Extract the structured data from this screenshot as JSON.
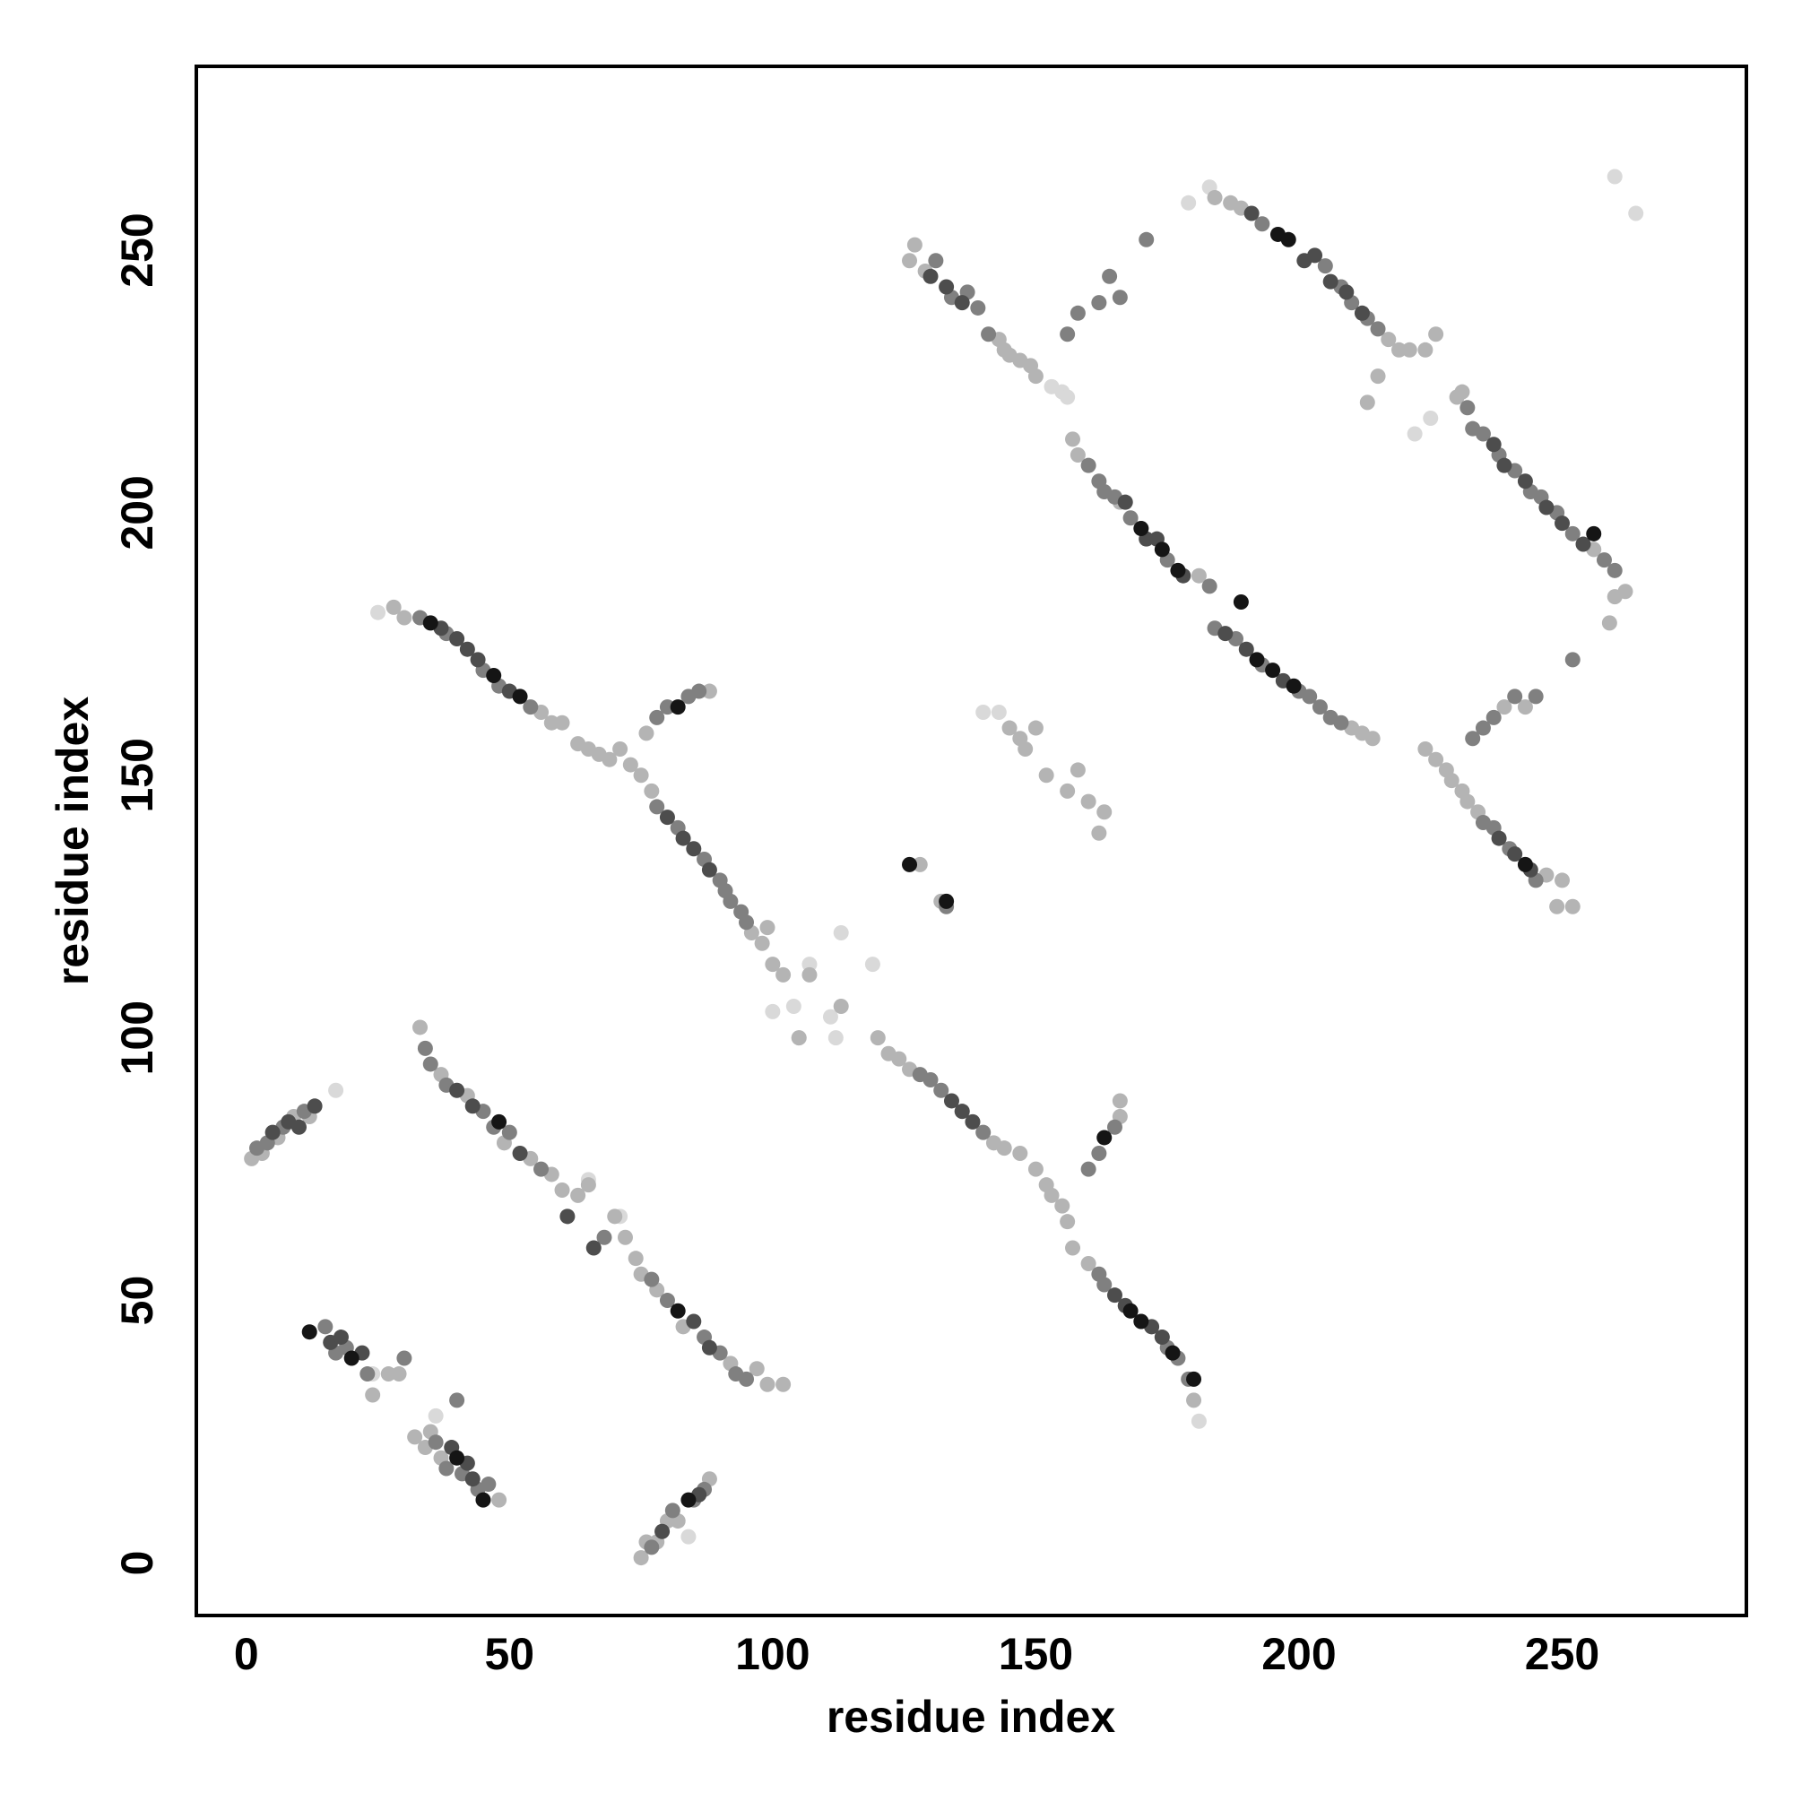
{
  "chart_data": {
    "type": "scatter",
    "x_label": "residue index",
    "y_label": "residue index",
    "xlim": [
      -9.5,
      285
    ],
    "ylim": [
      -10,
      285
    ],
    "xticks": [
      0,
      50,
      100,
      150,
      200,
      250
    ],
    "yticks": [
      0,
      50,
      100,
      150,
      200,
      250
    ],
    "grid": false,
    "series": [
      {
        "color": "#d9d9d9",
        "x": [
          25,
          17,
          24,
          36,
          84,
          65,
          100,
          104,
          105,
          107,
          111,
          112,
          113,
          119,
          140,
          143,
          153,
          155,
          156,
          179,
          183,
          222,
          225,
          260,
          264,
          181,
          71,
          61
        ],
        "values": [
          181,
          90,
          36,
          28,
          5,
          73,
          105,
          106,
          100,
          114,
          104,
          100,
          120,
          114,
          162,
          162,
          224,
          223,
          222,
          259,
          262,
          215,
          218,
          264,
          257,
          27,
          66,
          66
        ]
      },
      {
        "color": "#b4b4b4",
        "x": [
          1,
          3,
          6,
          9,
          12,
          24,
          27,
          29,
          32,
          34,
          35,
          37,
          48,
          75,
          76,
          78,
          80,
          82,
          88
        ],
        "values": [
          77,
          78,
          81,
          85,
          85,
          32,
          36,
          36,
          24,
          22,
          25,
          20,
          12,
          1,
          4,
          4,
          8,
          8,
          16
        ]
      },
      {
        "color": "#b4b4b4",
        "x": [
          33,
          37,
          42,
          49,
          54,
          58,
          60,
          63,
          65,
          70,
          72,
          74,
          75,
          78,
          83,
          92,
          97,
          99,
          102
        ],
        "values": [
          102,
          93,
          89,
          80,
          77,
          74,
          71,
          70,
          72,
          66,
          62,
          58,
          55,
          52,
          45,
          38,
          37,
          34,
          34
        ]
      },
      {
        "color": "#b4b4b4",
        "x": [
          28,
          30,
          56,
          58,
          60,
          63,
          65,
          67,
          69,
          71,
          73,
          75,
          76,
          77,
          88,
          96,
          98,
          99,
          100,
          102,
          105,
          107,
          113,
          120,
          122,
          124,
          126
        ],
        "values": [
          182,
          180,
          162,
          160,
          160,
          156,
          155,
          154,
          153,
          155,
          152,
          150,
          158,
          147,
          166,
          120,
          118,
          121,
          114,
          112,
          100,
          112,
          106,
          100,
          97,
          96,
          94
        ]
      },
      {
        "color": "#b4b4b4",
        "x": [
          136,
          138,
          142,
          144,
          147,
          150,
          152,
          153,
          155,
          156,
          157,
          160,
          166,
          166,
          167,
          170,
          172,
          174,
          180,
          128,
          132
        ],
        "values": [
          86,
          84,
          80,
          79,
          78,
          75,
          72,
          70,
          68,
          65,
          60,
          57,
          85,
          88,
          49,
          46,
          45,
          43,
          31,
          133,
          126
        ]
      },
      {
        "color": "#b4b4b4",
        "x": [
          126,
          127,
          129,
          143,
          144,
          145,
          147,
          149,
          150,
          184,
          187,
          189,
          217,
          219,
          221,
          224,
          226,
          213,
          215
        ],
        "values": [
          248,
          251,
          246,
          233,
          231,
          230,
          229,
          228,
          226,
          260,
          259,
          258,
          233,
          231,
          231,
          231,
          234,
          221,
          226
        ]
      },
      {
        "color": "#b4b4b4",
        "x": [
          157,
          158,
          166,
          170,
          181,
          210,
          212,
          214,
          145,
          147,
          148,
          150,
          152,
          156,
          158,
          160,
          162,
          163
        ],
        "values": [
          214,
          211,
          202,
          197,
          188,
          159,
          158,
          157,
          159,
          157,
          155,
          159,
          150,
          147,
          151,
          145,
          139,
          143
        ]
      },
      {
        "color": "#b4b4b4",
        "x": [
          230,
          231,
          256,
          260,
          262,
          259,
          224,
          226,
          228,
          229,
          231,
          232,
          234,
          243,
          247,
          249,
          250,
          252,
          239,
          243
        ],
        "values": [
          222,
          223,
          193,
          184,
          185,
          179,
          155,
          153,
          151,
          149,
          147,
          145,
          143,
          133,
          131,
          125,
          130,
          125,
          163,
          163
        ]
      },
      {
        "color": "#808080",
        "x": [
          2,
          4,
          7,
          11,
          15,
          17,
          19,
          23,
          30,
          36,
          38,
          41,
          44,
          46,
          40
        ],
        "values": [
          79,
          80,
          83,
          86,
          45,
          40,
          41,
          36,
          39,
          23,
          18,
          17,
          14,
          15,
          31
        ]
      },
      {
        "color": "#808080",
        "x": [
          77,
          81,
          85,
          87,
          34,
          35,
          38,
          45,
          47,
          50,
          56,
          68,
          77,
          80,
          87,
          90,
          93,
          95
        ],
        "values": [
          3,
          10,
          12,
          14,
          98,
          95,
          91,
          86,
          83,
          82,
          75,
          62,
          54,
          50,
          43,
          40,
          36,
          35
        ]
      },
      {
        "color": "#808080",
        "x": [
          33,
          38,
          45,
          48,
          54,
          78,
          80,
          84,
          86,
          78,
          82,
          87,
          90,
          91,
          92,
          94,
          95
        ],
        "values": [
          180,
          177,
          170,
          167,
          163,
          161,
          163,
          165,
          166,
          144,
          140,
          134,
          130,
          128,
          126,
          124,
          122
        ]
      },
      {
        "color": "#808080",
        "x": [
          128,
          130,
          132,
          140,
          160,
          162,
          165,
          162,
          163,
          175,
          177,
          179
        ],
        "values": [
          93,
          92,
          90,
          82,
          75,
          78,
          83,
          55,
          53,
          41,
          39,
          35
        ]
      },
      {
        "color": "#808080",
        "x": [
          131,
          134,
          137,
          139,
          141,
          156,
          158,
          162,
          164,
          166,
          171,
          193,
          205,
          208,
          210,
          213,
          215
        ],
        "values": [
          248,
          241,
          242,
          239,
          234,
          234,
          238,
          240,
          245,
          241,
          252,
          255,
          247,
          243,
          240,
          237,
          235
        ]
      },
      {
        "color": "#808080",
        "x": [
          160,
          162,
          163,
          165,
          168,
          175,
          183,
          184,
          188,
          193,
          200,
          202,
          204,
          206,
          208
        ],
        "values": [
          209,
          206,
          204,
          203,
          199,
          191,
          186,
          178,
          176,
          171,
          166,
          165,
          163,
          161,
          160
        ]
      },
      {
        "color": "#808080",
        "x": [
          232,
          233,
          235,
          238,
          241,
          244,
          246,
          249,
          252,
          258,
          260,
          235,
          237,
          240,
          245,
          233,
          235,
          237,
          241,
          245,
          252,
          133
        ],
        "values": [
          220,
          216,
          215,
          211,
          208,
          204,
          203,
          200,
          196,
          191,
          189,
          141,
          140,
          136,
          130,
          157,
          159,
          161,
          165,
          165,
          172,
          125
        ]
      },
      {
        "color": "#4d4d4d",
        "x": [
          5,
          8,
          10,
          13,
          16,
          18,
          22,
          39,
          42,
          43,
          86,
          79,
          37,
          40,
          42,
          44,
          50,
          80,
          83,
          85,
          88,
          134,
          136,
          138,
          165,
          167,
          172,
          174,
          130,
          133,
          136,
          191,
          201,
          203,
          206,
          209,
          212,
          167,
          171,
          173,
          178,
          186,
          190,
          197,
          237,
          239,
          243,
          247,
          250,
          254,
          238,
          241,
          244,
          40,
          43,
          52,
          61,
          66,
          85,
          88
        ],
        "values": [
          82,
          84,
          83,
          87,
          42,
          43,
          40,
          22,
          19,
          16,
          13,
          6,
          178,
          176,
          174,
          172,
          166,
          142,
          138,
          136,
          132,
          88,
          86,
          84,
          51,
          49,
          45,
          43,
          245,
          243,
          240,
          257,
          248,
          249,
          244,
          242,
          238,
          202,
          195,
          195,
          188,
          177,
          174,
          168,
          213,
          209,
          206,
          201,
          198,
          194,
          138,
          135,
          132,
          90,
          87,
          78,
          66,
          60,
          46,
          41
        ]
      },
      {
        "color": "#151515",
        "x": [
          12,
          20,
          40,
          45,
          84,
          35,
          47,
          52,
          82,
          126,
          133,
          170,
          174,
          177,
          189,
          192,
          195,
          199,
          196,
          198,
          256,
          243,
          168,
          170,
          176,
          180,
          48,
          82,
          163
        ],
        "values": [
          44,
          39,
          20,
          12,
          12,
          179,
          169,
          165,
          163,
          133,
          126,
          197,
          193,
          189,
          183,
          172,
          170,
          167,
          253,
          252,
          196,
          133,
          48,
          46,
          40,
          35,
          84,
          48,
          81
        ]
      }
    ]
  }
}
